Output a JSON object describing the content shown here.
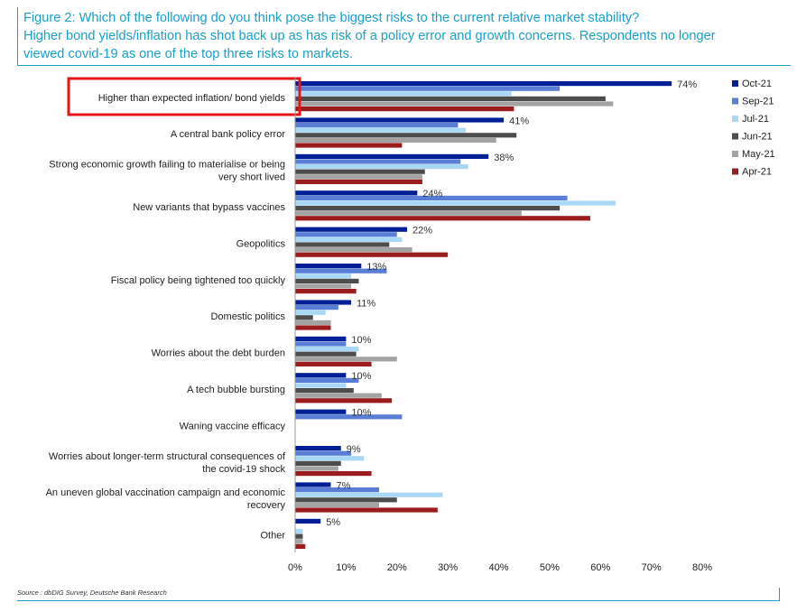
{
  "title": {
    "line1": "Figure 2: Which of the following do you think pose the biggest risks to the current relative market stability?",
    "line2": "Higher bond yields/inflation has shot back up as has risk of a policy error and growth concerns. Respondents no longer",
    "line3": "viewed covid-19 as one of the top three risks to markets."
  },
  "source": "Source : dbDIG Survey, Deutsche Bank Research",
  "chart_data": {
    "type": "bar",
    "orientation": "horizontal",
    "categories": [
      [
        "Higher than expected inflation/ bond yields"
      ],
      [
        "A central bank policy error"
      ],
      [
        "Strong economic growth failing to materialise or being",
        "very short lived"
      ],
      [
        "New variants that bypass vaccines"
      ],
      [
        "Geopolitics"
      ],
      [
        "Fiscal policy being tightened too quickly"
      ],
      [
        "Domestic politics"
      ],
      [
        "Worries about the debt burden"
      ],
      [
        "A tech bubble bursting"
      ],
      [
        "Waning vaccine efficacy"
      ],
      [
        "Worries about longer-term structural consequences of",
        "the covid-19 shock"
      ],
      [
        "An uneven global vaccination campaign and economic",
        "recovery"
      ],
      [
        "Other"
      ]
    ],
    "series": [
      {
        "name": "Oct-21",
        "color": "#001e96",
        "values": [
          74,
          41,
          38,
          24,
          22,
          13,
          11,
          10,
          10,
          10,
          9,
          7,
          5
        ]
      },
      {
        "name": "Sep-21",
        "color": "#5a7ed6",
        "values": [
          52,
          32,
          32.5,
          53.5,
          20,
          18,
          8.5,
          10,
          12.5,
          21,
          11,
          16.5,
          null
        ]
      },
      {
        "name": "Jul-21",
        "color": "#a8d8f4",
        "values": [
          42.5,
          33.5,
          34,
          63,
          21,
          11,
          6,
          12.5,
          10,
          null,
          13.5,
          29,
          1.5
        ]
      },
      {
        "name": "Jun-21",
        "color": "#4d4d4d",
        "values": [
          61,
          43.5,
          25.5,
          52,
          18.5,
          12.5,
          3.5,
          12,
          11.5,
          null,
          9,
          20,
          1.5
        ]
      },
      {
        "name": "May-21",
        "color": "#a3a3a3",
        "values": [
          62.5,
          39.5,
          25,
          44.5,
          23,
          11,
          7,
          20,
          17,
          null,
          8.5,
          16.5,
          1.5
        ]
      },
      {
        "name": "Apr-21",
        "color": "#9b1c1c",
        "values": [
          43,
          21,
          25,
          58,
          30,
          12,
          7,
          15,
          19,
          null,
          15,
          28,
          2
        ]
      }
    ],
    "data_labels": [
      "74%",
      "41%",
      "38%",
      "24%",
      "22%",
      "13%",
      "11%",
      "10%",
      "10%",
      "10%",
      "9%",
      "7%",
      "5%"
    ],
    "xlim": [
      0,
      80
    ],
    "xticks": [
      "0%",
      "10%",
      "20%",
      "30%",
      "40%",
      "50%",
      "60%",
      "70%",
      "80%"
    ],
    "legend_position": "right",
    "highlighted_category": "Higher than expected inflation/ bond yields",
    "highlight_color": "#e8141c"
  }
}
